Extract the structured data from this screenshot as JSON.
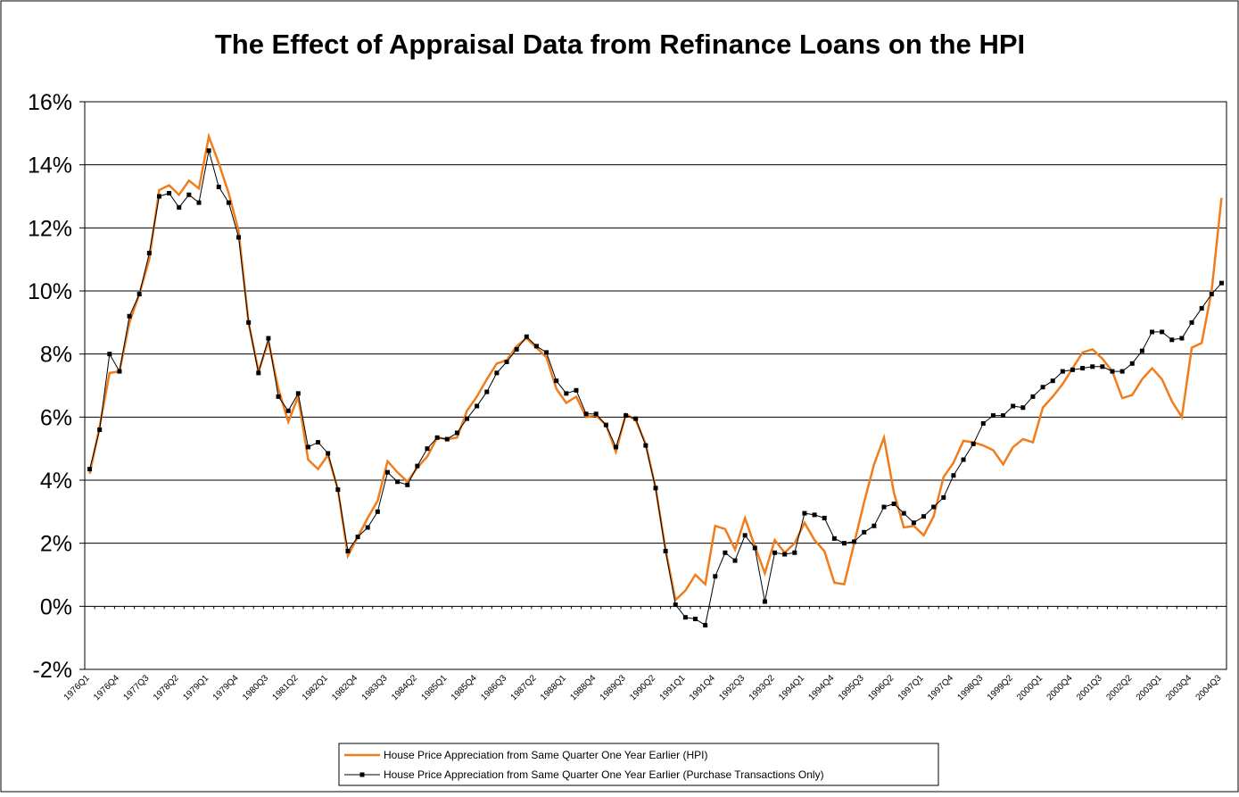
{
  "chart_data": {
    "type": "line",
    "title": "The Effect of Appraisal Data from Refinance Loans on the HPI",
    "categories": [
      "1976Q1",
      null,
      null,
      "1976Q4",
      null,
      null,
      "1977Q3",
      null,
      null,
      "1978Q2",
      null,
      null,
      "1979Q1",
      null,
      null,
      "1979Q4",
      null,
      null,
      "1980Q3",
      null,
      null,
      "1981Q2",
      null,
      null,
      "1982Q1",
      null,
      null,
      "1982Q4",
      null,
      null,
      "1983Q3",
      null,
      null,
      "1984Q2",
      null,
      null,
      "1985Q1",
      null,
      null,
      "1985Q4",
      null,
      null,
      "1986Q3",
      null,
      null,
      "1987Q2",
      null,
      null,
      "1988Q1",
      null,
      null,
      "1988Q4",
      null,
      null,
      "1989Q3",
      null,
      null,
      "1990Q2",
      null,
      null,
      "1991Q1",
      null,
      null,
      "1991Q4",
      null,
      null,
      "1992Q3",
      null,
      null,
      "1993Q2",
      null,
      null,
      "1994Q1",
      null,
      null,
      "1994Q4",
      null,
      null,
      "1995Q3",
      null,
      null,
      "1996Q2",
      null,
      null,
      "1997Q1",
      null,
      null,
      "1997Q4",
      null,
      null,
      "1998Q3",
      null,
      null,
      "1999Q2",
      null,
      null,
      "2000Q1",
      null,
      null,
      "2000Q4",
      null,
      null,
      "2001Q3",
      null,
      null,
      "2002Q2",
      null,
      null,
      "2003Q1",
      null,
      null,
      "2003Q4",
      null,
      null,
      "2004Q3"
    ],
    "series": [
      {
        "name": "House Price Appreciation from Same Quarter One Year Earlier (HPI)",
        "color": "#f07c1c",
        "marker": false,
        "values": [
          4.2,
          5.7,
          7.4,
          7.45,
          9.0,
          9.9,
          11.0,
          13.2,
          13.35,
          13.05,
          13.5,
          13.25,
          14.9,
          14.05,
          13.1,
          11.9,
          9.0,
          7.45,
          8.4,
          6.9,
          5.85,
          6.65,
          4.65,
          4.35,
          4.8,
          3.7,
          1.6,
          2.2,
          2.8,
          3.35,
          4.6,
          4.25,
          3.95,
          4.4,
          4.75,
          5.35,
          5.3,
          5.35,
          6.2,
          6.65,
          7.2,
          7.7,
          7.8,
          8.25,
          8.5,
          8.2,
          7.9,
          6.9,
          6.45,
          6.65,
          6.0,
          6.05,
          5.75,
          4.9,
          6.1,
          5.9,
          5.15,
          3.75,
          1.8,
          0.2,
          0.5,
          1.0,
          0.7,
          2.55,
          2.45,
          1.8,
          2.8,
          1.9,
          1.05,
          2.1,
          1.7,
          2.0,
          2.65,
          2.1,
          1.75,
          0.75,
          0.7,
          2.0,
          3.3,
          4.5,
          5.35,
          3.6,
          2.5,
          2.55,
          2.25,
          2.85,
          4.1,
          4.55,
          5.25,
          5.2,
          5.1,
          4.95,
          4.5,
          5.05,
          5.3,
          5.2,
          6.3,
          6.65,
          7.05,
          7.55,
          8.05,
          8.15,
          7.85,
          7.45,
          6.6,
          6.7,
          7.2,
          7.55,
          7.2,
          6.5,
          6.0,
          8.2,
          8.35,
          10.0,
          12.95
        ]
      },
      {
        "name": "House Price Appreciation from Same Quarter One Year Earlier (Purchase Transactions Only)",
        "color": "#000000",
        "marker": true,
        "values": [
          4.35,
          5.6,
          8.0,
          7.45,
          9.2,
          9.9,
          11.2,
          13.0,
          13.1,
          12.65,
          13.05,
          12.8,
          14.45,
          13.3,
          12.8,
          11.7,
          9.0,
          7.4,
          8.5,
          6.65,
          6.2,
          6.75,
          5.05,
          5.2,
          4.85,
          3.7,
          1.75,
          2.2,
          2.5,
          3.0,
          4.25,
          3.95,
          3.85,
          4.45,
          5.0,
          5.35,
          5.3,
          5.5,
          5.95,
          6.35,
          6.8,
          7.4,
          7.75,
          8.15,
          8.55,
          8.25,
          8.05,
          7.15,
          6.75,
          6.85,
          6.1,
          6.1,
          5.75,
          5.05,
          6.05,
          5.95,
          5.1,
          3.75,
          1.75,
          0.05,
          -0.35,
          -0.4,
          -0.6,
          0.95,
          1.7,
          1.45,
          2.25,
          1.85,
          0.15,
          1.7,
          1.65,
          1.7,
          2.95,
          2.9,
          2.8,
          2.15,
          2.0,
          2.05,
          2.35,
          2.55,
          3.15,
          3.25,
          2.95,
          2.65,
          2.85,
          3.15,
          3.45,
          4.15,
          4.65,
          5.15,
          5.8,
          6.05,
          6.05,
          6.35,
          6.3,
          6.65,
          6.95,
          7.15,
          7.45,
          7.5,
          7.55,
          7.6,
          7.6,
          7.45,
          7.45,
          7.7,
          8.1,
          8.7,
          8.7,
          8.45,
          8.5,
          9.0,
          9.45,
          9.9,
          10.25
        ]
      }
    ],
    "ylim": [
      -2,
      16
    ],
    "yticks": [
      {
        "value": -2,
        "label": "-2%"
      },
      {
        "value": 0,
        "label": "0%"
      },
      {
        "value": 2,
        "label": "2%"
      },
      {
        "value": 4,
        "label": "4%"
      },
      {
        "value": 6,
        "label": "6%"
      },
      {
        "value": 8,
        "label": "8%"
      },
      {
        "value": 10,
        "label": "10%"
      },
      {
        "value": 12,
        "label": "12%"
      },
      {
        "value": 14,
        "label": "14%"
      },
      {
        "value": 16,
        "label": "16%"
      }
    ],
    "grid": true,
    "legend": "bottom"
  }
}
